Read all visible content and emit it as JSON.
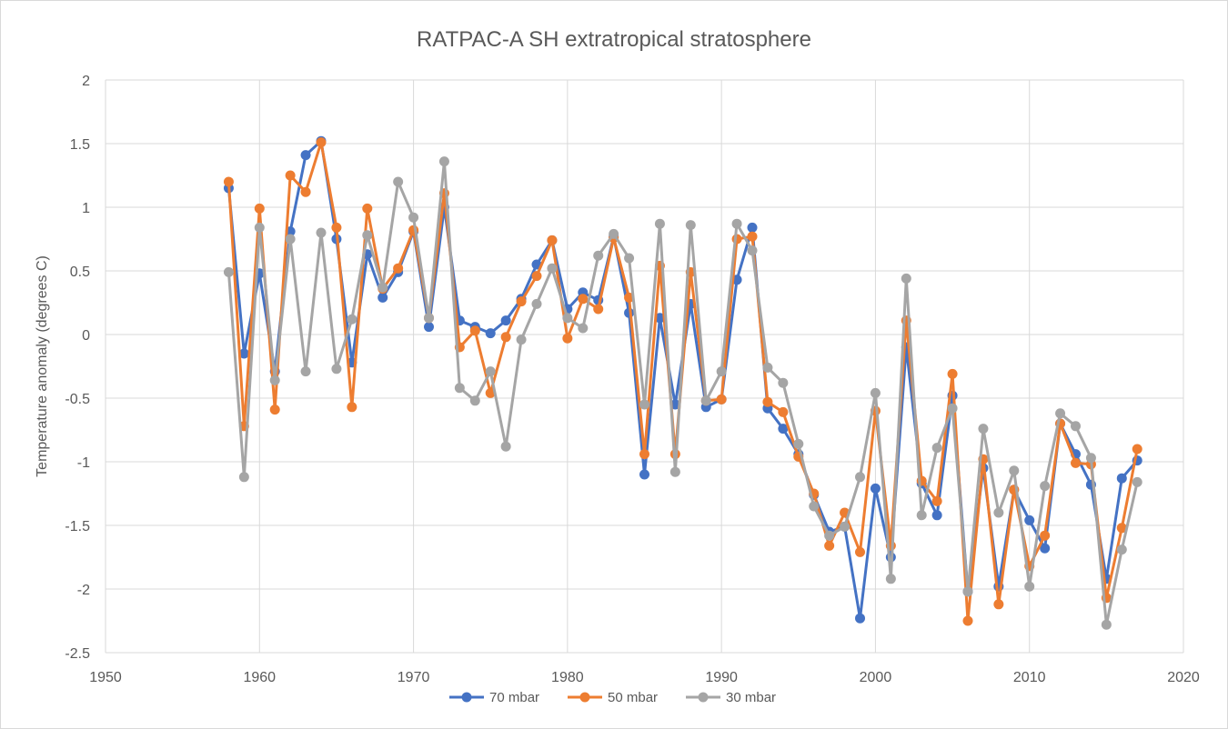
{
  "chart_data": {
    "type": "line",
    "title": "RATPAC-A SH extratropical stratosphere",
    "xlabel": "",
    "ylabel": "Temperature anomaly (degrees C)",
    "xlim": [
      1950,
      2020
    ],
    "ylim": [
      -2.5,
      2
    ],
    "x_ticks": [
      1950,
      1960,
      1970,
      1980,
      1990,
      2000,
      2010,
      2020
    ],
    "y_ticks": [
      2,
      1.5,
      1,
      0.5,
      0,
      -0.5,
      -1,
      -1.5,
      -2,
      -2.5
    ],
    "grid": true,
    "legend_position": "bottom",
    "x": [
      1958,
      1959,
      1960,
      1961,
      1962,
      1963,
      1964,
      1965,
      1966,
      1967,
      1968,
      1969,
      1970,
      1971,
      1972,
      1973,
      1974,
      1975,
      1976,
      1977,
      1978,
      1979,
      1980,
      1981,
      1982,
      1983,
      1984,
      1985,
      1986,
      1987,
      1988,
      1989,
      1990,
      1991,
      1992,
      1993,
      1994,
      1995,
      1996,
      1997,
      1998,
      1999,
      2000,
      2001,
      2002,
      2003,
      2004,
      2005,
      2006,
      2007,
      2008,
      2009,
      2010,
      2011,
      2012,
      2013,
      2014,
      2015,
      2016,
      2017
    ],
    "series": [
      {
        "name": "70 mbar",
        "color": "#4472c4",
        "values": [
          1.15,
          -0.15,
          0.48,
          -0.29,
          0.81,
          1.41,
          1.52,
          0.75,
          -0.22,
          0.63,
          0.29,
          0.49,
          0.81,
          0.06,
          1.0,
          0.11,
          0.06,
          0.01,
          0.11,
          0.28,
          0.55,
          0.74,
          0.2,
          0.33,
          0.27,
          0.77,
          0.17,
          -1.1,
          0.13,
          -0.55,
          0.24,
          -0.57,
          -0.51,
          0.43,
          0.84,
          -0.58,
          -0.74,
          -0.94,
          -1.26,
          -1.55,
          -1.51,
          -2.23,
          -1.21,
          -1.75,
          -0.1,
          -1.17,
          -1.42,
          -0.48,
          -2.02,
          -1.05,
          -1.98,
          -1.22,
          -1.46,
          -1.68,
          -0.7,
          -0.94,
          -1.18,
          -1.92,
          -1.13,
          -0.99
        ]
      },
      {
        "name": "50 mbar",
        "color": "#ed7d31",
        "values": [
          1.2,
          -0.72,
          0.99,
          -0.59,
          1.25,
          1.12,
          1.51,
          0.84,
          -0.57,
          0.99,
          0.36,
          0.52,
          0.82,
          0.13,
          1.11,
          -0.1,
          0.03,
          -0.46,
          -0.02,
          0.26,
          0.46,
          0.74,
          -0.03,
          0.28,
          0.2,
          0.76,
          0.29,
          -0.94,
          0.54,
          -0.94,
          0.49,
          -0.52,
          -0.51,
          0.75,
          0.77,
          -0.53,
          -0.61,
          -0.96,
          -1.25,
          -1.66,
          -1.4,
          -1.71,
          -0.6,
          -1.66,
          0.11,
          -1.15,
          -1.31,
          -0.31,
          -2.25,
          -0.98,
          -2.12,
          -1.22,
          -1.82,
          -1.58,
          -0.7,
          -1.01,
          -1.02,
          -2.07,
          -1.52,
          -0.9
        ]
      },
      {
        "name": "30 mbar",
        "color": "#a5a5a5",
        "values": [
          0.49,
          -1.12,
          0.84,
          -0.36,
          0.75,
          -0.29,
          0.8,
          -0.27,
          0.12,
          0.78,
          0.37,
          1.2,
          0.92,
          0.13,
          1.36,
          -0.42,
          -0.52,
          -0.29,
          -0.88,
          -0.04,
          0.24,
          0.52,
          0.13,
          0.05,
          0.62,
          0.79,
          0.6,
          -0.55,
          0.87,
          -1.08,
          0.86,
          -0.52,
          -0.29,
          0.87,
          0.66,
          -0.26,
          -0.38,
          -0.86,
          -1.35,
          -1.58,
          -1.51,
          -1.12,
          -0.46,
          -1.92,
          0.44,
          -1.42,
          -0.89,
          -0.58,
          -2.02,
          -0.74,
          -1.4,
          -1.07,
          -1.98,
          -1.19,
          -0.62,
          -0.72,
          -0.97,
          -2.28,
          -1.69,
          -1.16
        ]
      }
    ]
  }
}
